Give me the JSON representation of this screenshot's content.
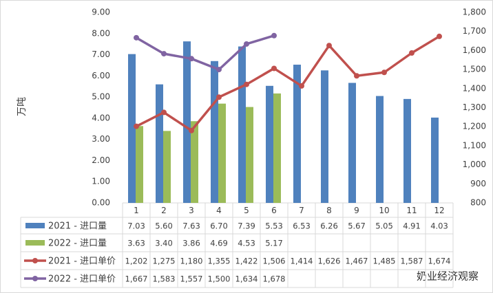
{
  "chart_data": {
    "type": "combo",
    "y_axis_label": "万吨",
    "categories": [
      "1",
      "2",
      "3",
      "4",
      "5",
      "6",
      "7",
      "8",
      "9",
      "10",
      "11",
      "12"
    ],
    "ylim": [
      0,
      9
    ],
    "yticks": [
      {
        "value": 0,
        "label": "0.00"
      },
      {
        "value": 1,
        "label": "1.00"
      },
      {
        "value": 2,
        "label": "2.00"
      },
      {
        "value": 3,
        "label": "3.00"
      },
      {
        "value": 4,
        "label": "4.00"
      },
      {
        "value": 5,
        "label": "5.00"
      },
      {
        "value": 6,
        "label": "6.00"
      },
      {
        "value": 7,
        "label": "7.00"
      },
      {
        "value": 8,
        "label": "8.00"
      },
      {
        "value": 9,
        "label": "9.00"
      }
    ],
    "y2lim": [
      800,
      1800
    ],
    "y2ticks": [
      800,
      900,
      {
        "value": 1000,
        "label": "1,000"
      },
      {
        "value": 1100,
        "label": "1,100"
      },
      {
        "value": 1200,
        "label": "1,200"
      },
      {
        "value": 1300,
        "label": "1,300"
      },
      {
        "value": 1400,
        "label": "1,400"
      },
      {
        "value": 1500,
        "label": "1,500"
      },
      {
        "value": 1600,
        "label": "1,600"
      },
      {
        "value": 1700,
        "label": "1,700"
      },
      {
        "value": 1800,
        "label": "1,800"
      }
    ],
    "series": [
      {
        "name": "2021 - 进口量",
        "type": "bar",
        "color": "#4f81bd",
        "values": [
          7.03,
          5.6,
          7.63,
          6.7,
          7.39,
          5.53,
          6.53,
          6.26,
          5.67,
          5.05,
          4.91,
          4.03
        ],
        "value_labels": [
          "7.03",
          "5.60",
          "7.63",
          "6.70",
          "7.39",
          "5.53",
          "6.53",
          "6.26",
          "5.67",
          "5.05",
          "4.91",
          "4.03"
        ]
      },
      {
        "name": "2022 - 进口量",
        "type": "bar",
        "color": "#9bbb59",
        "values": [
          3.63,
          3.4,
          3.86,
          4.69,
          4.53,
          5.17,
          null,
          null,
          null,
          null,
          null,
          null
        ],
        "value_labels": [
          "3.63",
          "3.40",
          "3.86",
          "4.69",
          "4.53",
          "5.17",
          null,
          null,
          null,
          null,
          null,
          null
        ]
      },
      {
        "name": "2021 - 进口单价",
        "type": "line",
        "axis": "y2",
        "color": "#c0504d",
        "values": [
          1202,
          1275,
          1180,
          1355,
          1422,
          1506,
          1414,
          1626,
          1467,
          1485,
          1587,
          1674
        ],
        "value_labels": [
          "1,202",
          "1,275",
          "1,180",
          "1,355",
          "1,422",
          "1,506",
          "1,414",
          "1,626",
          "1,467",
          "1,485",
          "1,587",
          "1,674"
        ]
      },
      {
        "name": "2022 - 进口单价",
        "type": "line",
        "axis": "y2",
        "color": "#8064a2",
        "values": [
          1667,
          1583,
          1557,
          1500,
          1634,
          1678,
          null,
          null,
          null,
          null,
          null,
          null
        ],
        "value_labels": [
          "1,667",
          "1,583",
          "1,557",
          "1,500",
          "1,634",
          "1,678",
          null,
          null,
          null,
          null,
          null,
          null
        ]
      }
    ],
    "watermark": "奶业经济观察"
  }
}
